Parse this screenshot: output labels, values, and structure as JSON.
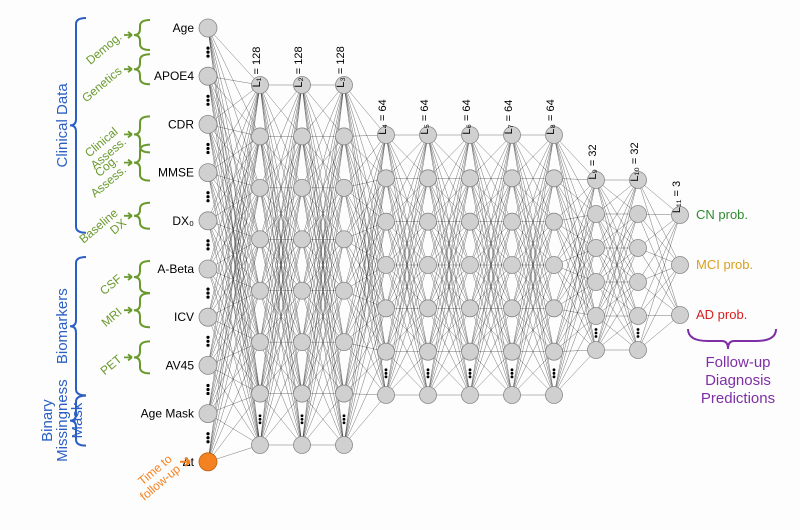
{
  "diagram": {
    "type": "network",
    "background_color": "#fdfdfe",
    "node_color": "#d0d0d0",
    "node_stroke": "#888888",
    "special_node_color": "#f58220",
    "edge_color": "#000000",
    "input_groups_blue": [
      {
        "label": "Clinical Data",
        "color": "#2b5fc4"
      },
      {
        "label": "Biomarkers",
        "color": "#2b5fc4"
      },
      {
        "label": "Binary Missingness Mask",
        "color": "#2b5fc4"
      }
    ],
    "input_groups_green": [
      {
        "label": "Demog.",
        "color": "#6a9a2d"
      },
      {
        "label": "Genetics",
        "color": "#6a9a2d"
      },
      {
        "label": "Clinical Assess.",
        "color": "#6a9a2d"
      },
      {
        "label": "Cog. Assess.",
        "color": "#6a9a2d"
      },
      {
        "label": "Baseline DX",
        "color": "#6a9a2d"
      },
      {
        "label": "CSF",
        "color": "#6a9a2d"
      },
      {
        "label": "MRI",
        "color": "#6a9a2d"
      },
      {
        "label": "PET",
        "color": "#6a9a2d"
      }
    ],
    "time_label": {
      "label": "Time to follow-up",
      "color": "#f58220"
    },
    "input_nodes": [
      {
        "label": "Age"
      },
      {
        "label": "APOE4"
      },
      {
        "label": "CDR"
      },
      {
        "label": "MMSE"
      },
      {
        "label": "DX₀"
      },
      {
        "label": "A-Beta"
      },
      {
        "label": "ICV"
      },
      {
        "label": "AV45"
      },
      {
        "label": "Age Mask"
      },
      {
        "label": "Δt",
        "special": true
      }
    ],
    "layers": [
      {
        "label": "L₁ = 128",
        "size": 128,
        "nodes_shown": 8
      },
      {
        "label": "L₂ = 128",
        "size": 128,
        "nodes_shown": 8
      },
      {
        "label": "L₃ = 128",
        "size": 128,
        "nodes_shown": 8
      },
      {
        "label": "L₄ = 64",
        "size": 64,
        "nodes_shown": 7
      },
      {
        "label": "L₅ = 64",
        "size": 64,
        "nodes_shown": 7
      },
      {
        "label": "L₆ = 64",
        "size": 64,
        "nodes_shown": 7
      },
      {
        "label": "L₇ = 64",
        "size": 64,
        "nodes_shown": 7
      },
      {
        "label": "L₈ = 64",
        "size": 64,
        "nodes_shown": 7
      },
      {
        "label": "L₉ = 32",
        "size": 32,
        "nodes_shown": 6
      },
      {
        "label": "L₁₀ = 32",
        "size": 32,
        "nodes_shown": 6
      },
      {
        "label": "L₁₁ = 3",
        "size": 3,
        "nodes_shown": 3
      }
    ],
    "outputs": [
      {
        "label": "CN prob.",
        "color": "#2e8b2e"
      },
      {
        "label": "MCI prob.",
        "color": "#d9a020"
      },
      {
        "label": "AD prob.",
        "color": "#d62020"
      }
    ],
    "output_group": {
      "label1": "Follow-up",
      "label2": "Diagnosis",
      "label3": "Predictions",
      "color": "#7e2fa5"
    }
  }
}
